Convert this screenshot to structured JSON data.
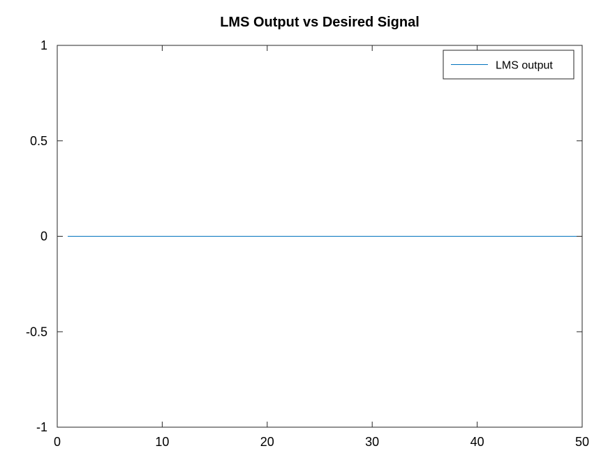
{
  "chart_data": {
    "type": "line",
    "title": "LMS Output vs Desired Signal",
    "xlabel": "",
    "ylabel": "",
    "xlim": [
      0,
      50
    ],
    "ylim": [
      -1,
      1
    ],
    "x_ticks": [
      0,
      10,
      20,
      30,
      40,
      50
    ],
    "y_ticks": [
      -1,
      -0.5,
      0,
      0.5,
      1
    ],
    "x_tick_labels": [
      "0",
      "10",
      "20",
      "30",
      "40",
      "50"
    ],
    "y_tick_labels": [
      "-1",
      "-0.5",
      "0",
      "0.5",
      "1"
    ],
    "grid": false,
    "legend_position": "top-right",
    "series": [
      {
        "name": "LMS output",
        "color": "#0072bd",
        "x": [
          1,
          2,
          3,
          4,
          5,
          6,
          7,
          8,
          9,
          10,
          11,
          12,
          13,
          14,
          15,
          16,
          17,
          18,
          19,
          20,
          21,
          22,
          23,
          24,
          25,
          26,
          27,
          28,
          29,
          30,
          31,
          32,
          33,
          34,
          35,
          36,
          37,
          38,
          39,
          40,
          41,
          42,
          43,
          44,
          45,
          46,
          47,
          48,
          49,
          50
        ],
        "values": [
          0,
          0,
          0,
          0,
          0,
          0,
          0,
          0,
          0,
          0,
          0,
          0,
          0,
          0,
          0,
          0,
          0,
          0,
          0,
          0,
          0,
          0,
          0,
          0,
          0,
          0,
          0,
          0,
          0,
          0,
          0,
          0,
          0,
          0,
          0,
          0,
          0,
          0,
          0,
          0,
          0,
          0,
          0,
          0,
          0,
          0,
          0,
          0,
          0,
          0
        ]
      }
    ]
  }
}
